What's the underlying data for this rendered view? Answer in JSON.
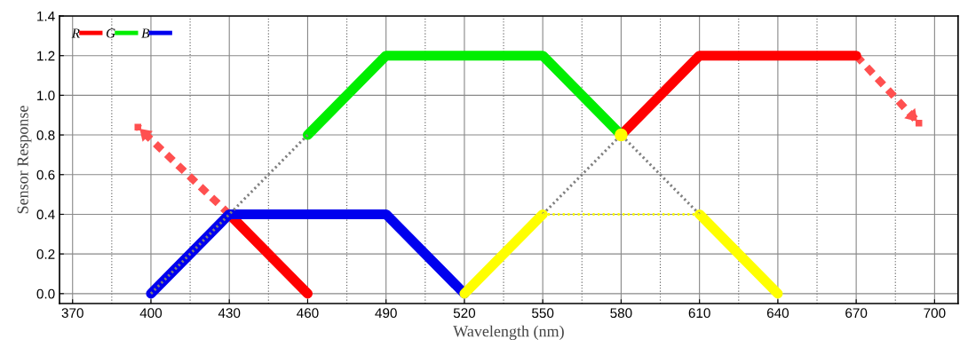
{
  "chart_data": {
    "type": "line",
    "xlabel": "Wavelength (nm)",
    "ylabel": "Sensor Response",
    "xlim": [
      365,
      709
    ],
    "ylim": [
      -0.05,
      1.4
    ],
    "xticks": [
      370,
      {
        "value": 385,
        "label": null
      },
      400,
      {
        "value": 415,
        "label": null
      },
      430,
      {
        "value": 445,
        "label": null
      },
      460,
      {
        "value": 475,
        "label": null
      },
      490,
      {
        "value": 505,
        "label": null
      },
      520,
      {
        "value": 535,
        "label": null
      },
      550,
      {
        "value": 565,
        "label": null
      },
      580,
      {
        "value": 595,
        "label": null
      },
      610,
      {
        "value": 625,
        "label": null
      },
      640,
      {
        "value": 655,
        "label": null
      },
      670,
      {
        "value": 685,
        "label": null
      },
      700
    ],
    "yticks": [
      {
        "value": 0,
        "label": "0.0"
      },
      0.2,
      0.4,
      0.6,
      0.8,
      {
        "value": 1,
        "label": "1.0"
      },
      1.2,
      1.4
    ],
    "grid": true,
    "legend": "top left",
    "series": [
      {
        "color": "#808080",
        "x": [
          400,
          460
        ],
        "values": [
          0,
          0.8
        ],
        "line_style": "dotted"
      },
      {
        "color": "#808080",
        "x": [
          550,
          580,
          610
        ],
        "values": [
          0.4,
          0.8,
          0.4
        ],
        "line_style": "dotted"
      },
      {
        "color": "#ff5050",
        "x": [
          430,
          395
        ],
        "values": [
          0.4,
          0.84
        ],
        "line_style": "dashed"
      },
      {
        "color": "#ff5050",
        "x": [
          670,
          694
        ],
        "values": [
          1.2,
          0.86
        ],
        "line_style": "dashed"
      },
      {
        "name": "R",
        "color": "#ff0000",
        "x": [
          430,
          460,
          520,
          580,
          610,
          670
        ],
        "values": [
          0.4,
          0,
          null,
          0.8,
          1.2,
          1.2
        ],
        "line_style": "solid"
      },
      {
        "name": "G",
        "color": "#00ee00",
        "x": [
          460,
          490,
          550,
          580
        ],
        "values": [
          0.8,
          1.2,
          1.2,
          0.8
        ],
        "line_style": "solid"
      },
      {
        "name": "B",
        "color": "#0000ee",
        "x": [
          400,
          430,
          490,
          520
        ],
        "values": [
          0,
          0.4,
          0.4,
          0
        ],
        "line_style": "solid"
      },
      {
        "color": "#ffff00",
        "x": [
          520,
          550
        ],
        "values": [
          0,
          0.4
        ],
        "line_style": "solid"
      },
      {
        "color": "#ffff00",
        "x": [
          550,
          610
        ],
        "values": [
          0.4,
          0.4
        ],
        "line_style": "dotted"
      },
      {
        "color": "#ffff00",
        "x": [
          610,
          640
        ],
        "values": [
          0.4,
          0
        ],
        "line_style": "solid"
      },
      {
        "type": "scatter",
        "color": "#ffff00",
        "x": [
          580
        ],
        "values": [
          0.8
        ],
        "marker": "circle"
      }
    ]
  }
}
